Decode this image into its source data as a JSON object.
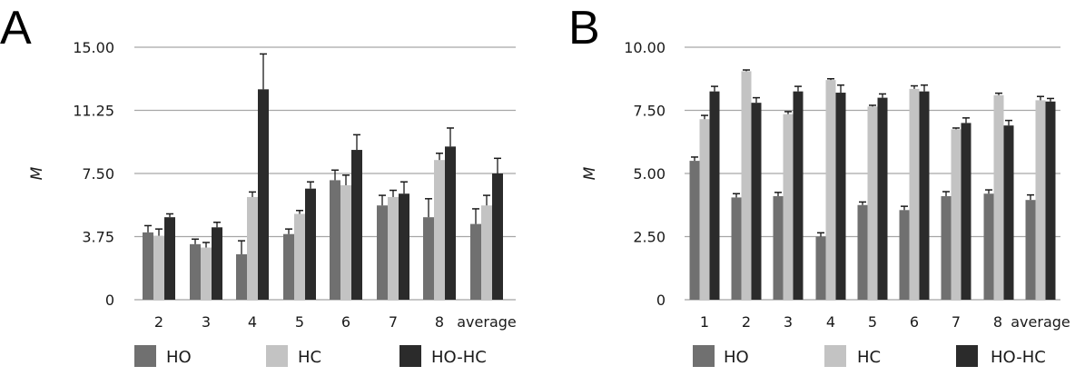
{
  "chart_data": [
    {
      "type": "bar",
      "panel_label": "A",
      "categories": [
        "2",
        "3",
        "4",
        "5",
        "6",
        "7",
        "8",
        "average"
      ],
      "ylabel": "M",
      "ylim": [
        0,
        15
      ],
      "yticks": [
        0,
        3.75,
        7.5,
        11.25,
        15
      ],
      "ytick_labels": [
        "0",
        "3.75",
        "7.50",
        "11.25",
        "15.00"
      ],
      "grid": true,
      "legend_position": "bottom",
      "error_bars": true,
      "series": [
        {
          "name": "HO",
          "color": "#707070",
          "values": [
            4.0,
            3.3,
            2.7,
            3.9,
            7.1,
            5.6,
            4.9,
            4.5
          ],
          "errors": [
            0.4,
            0.3,
            0.8,
            0.3,
            0.6,
            0.6,
            1.1,
            0.9
          ]
        },
        {
          "name": "HC",
          "color": "#c3c3c3",
          "values": [
            3.8,
            3.1,
            6.1,
            5.1,
            6.8,
            6.1,
            8.3,
            5.6
          ],
          "errors": [
            0.4,
            0.3,
            0.3,
            0.2,
            0.6,
            0.4,
            0.4,
            0.6
          ]
        },
        {
          "name": "HO-HC",
          "color": "#2b2b2b",
          "values": [
            4.9,
            4.3,
            12.5,
            6.6,
            8.9,
            6.3,
            9.1,
            7.5
          ],
          "errors": [
            0.2,
            0.3,
            2.1,
            0.4,
            0.9,
            0.7,
            1.1,
            0.9
          ]
        }
      ]
    },
    {
      "type": "bar",
      "panel_label": "B",
      "categories": [
        "1",
        "2",
        "3",
        "4",
        "5",
        "6",
        "7",
        "8",
        "average"
      ],
      "ylabel": "M",
      "ylim": [
        0,
        10
      ],
      "yticks": [
        0,
        2.5,
        5,
        7.5,
        10
      ],
      "ytick_labels": [
        "0",
        "2.50",
        "5.00",
        "7.50",
        "10.00"
      ],
      "grid": true,
      "legend_position": "bottom",
      "error_bars": true,
      "series": [
        {
          "name": "HO",
          "color": "#707070",
          "values": [
            5.5,
            4.05,
            4.1,
            2.5,
            3.75,
            3.55,
            4.1,
            4.2,
            3.95
          ],
          "errors": [
            0.15,
            0.15,
            0.15,
            0.15,
            0.12,
            0.15,
            0.18,
            0.15,
            0.2
          ]
        },
        {
          "name": "HC",
          "color": "#c3c3c3",
          "values": [
            7.15,
            9.05,
            7.35,
            8.7,
            7.65,
            8.35,
            6.75,
            8.1,
            7.9
          ],
          "errors": [
            0.15,
            0.05,
            0.1,
            0.05,
            0.05,
            0.12,
            0.05,
            0.08,
            0.15
          ]
        },
        {
          "name": "HO-HC",
          "color": "#2b2b2b",
          "values": [
            8.25,
            7.8,
            8.25,
            8.2,
            8.0,
            8.25,
            7.0,
            6.9,
            7.85
          ],
          "errors": [
            0.2,
            0.2,
            0.2,
            0.3,
            0.15,
            0.25,
            0.2,
            0.2,
            0.12
          ]
        }
      ]
    }
  ]
}
